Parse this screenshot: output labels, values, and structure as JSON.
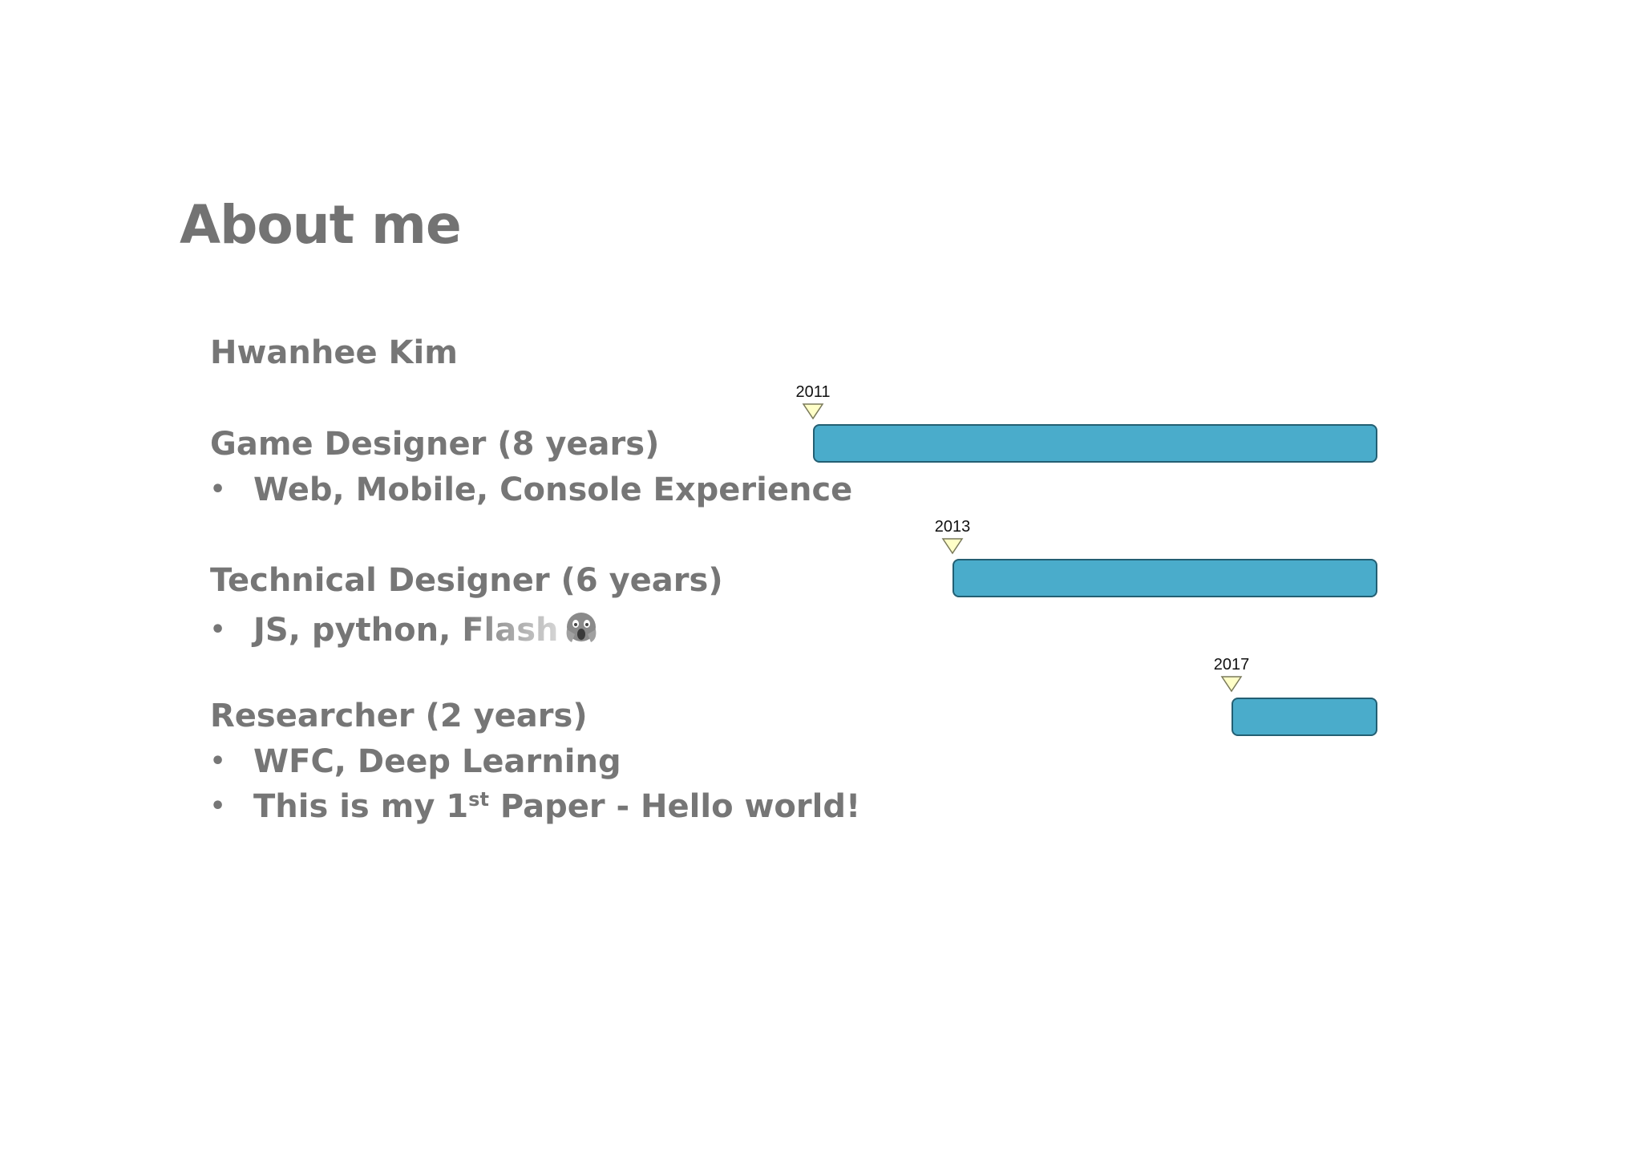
{
  "slide": {
    "title": "About me"
  },
  "profile": {
    "name": "Hwanhee Kim"
  },
  "roles": [
    {
      "title": "Game Designer (8 years)",
      "bullets": [
        "Web, Mobile, Console Experience"
      ]
    },
    {
      "title": "Technical Designer (6 years)",
      "bullets": [
        "JS, python, "
      ],
      "faded_text": "Flash",
      "icon": "screaming-face-icon"
    },
    {
      "title": "Researcher (2 years)",
      "bullets": [
        "WFC, Deep Learning",
        "This is my 1"
      ],
      "superscript": "st",
      "bullet_suffix": " Paper - Hello world!"
    }
  ],
  "timeline": {
    "end_year": 2019,
    "bars": [
      {
        "start_year": "2011",
        "end_year": 2019
      },
      {
        "start_year": "2013",
        "end_year": 2019
      },
      {
        "start_year": "2017",
        "end_year": 2019
      }
    ],
    "colors": {
      "bar_fill": "#4aaccb",
      "bar_border": "#235f73",
      "marker_fill": "#ffffc8",
      "marker_border": "#7a7a5a"
    }
  }
}
